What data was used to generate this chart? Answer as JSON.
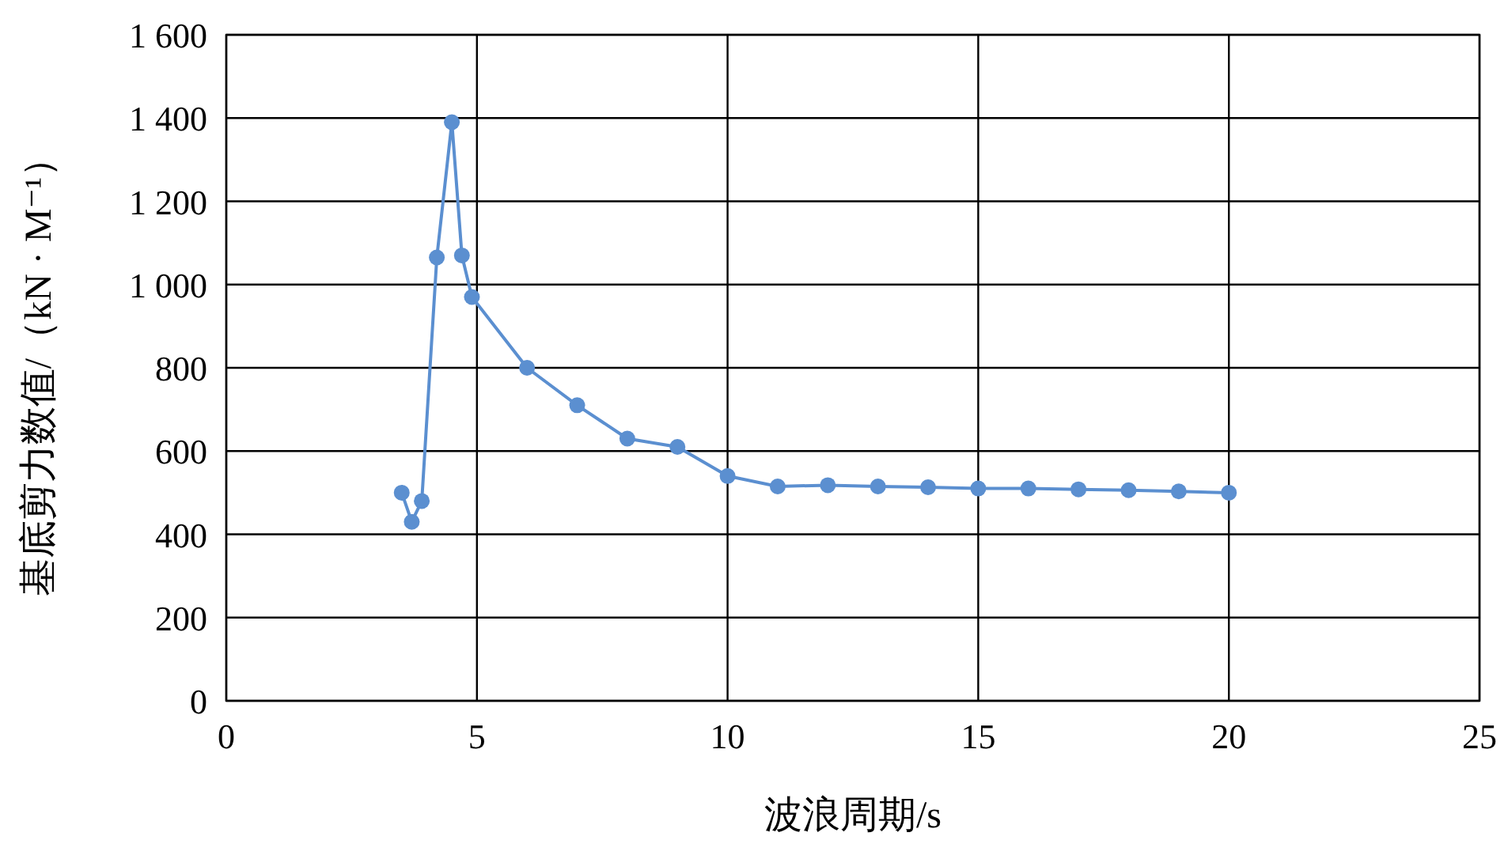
{
  "chart_data": {
    "type": "line",
    "xlabel": "波浪周期/s",
    "ylabel": "基底剪力数值/（kN · M⁻¹）",
    "x": [
      3.5,
      3.7,
      3.9,
      4.2,
      4.5,
      4.7,
      4.9,
      6,
      7,
      8,
      9,
      10,
      11,
      12,
      13,
      14,
      15,
      16,
      17,
      18,
      19,
      20
    ],
    "series": [
      {
        "color": "#5b8fd0",
        "values": [
          500,
          430,
          480,
          1065,
          1390,
          1070,
          970,
          800,
          710,
          630,
          610,
          540,
          515,
          518,
          515,
          513,
          510,
          510,
          508,
          506,
          503,
          500
        ]
      }
    ],
    "xlim": [
      0,
      25
    ],
    "xticks": [
      0,
      5,
      10,
      15,
      20,
      25
    ],
    "ylim": [
      0,
      1600
    ],
    "yticks": [
      0,
      200,
      400,
      600,
      800,
      {
        "value": 1000,
        "label": "1 000"
      },
      {
        "value": 1200,
        "label": "1 200"
      },
      {
        "value": 1400,
        "label": "1 400"
      },
      {
        "value": 1600,
        "label": "1 600"
      }
    ],
    "grid": true,
    "marker": "circle",
    "line_style": "solid"
  }
}
